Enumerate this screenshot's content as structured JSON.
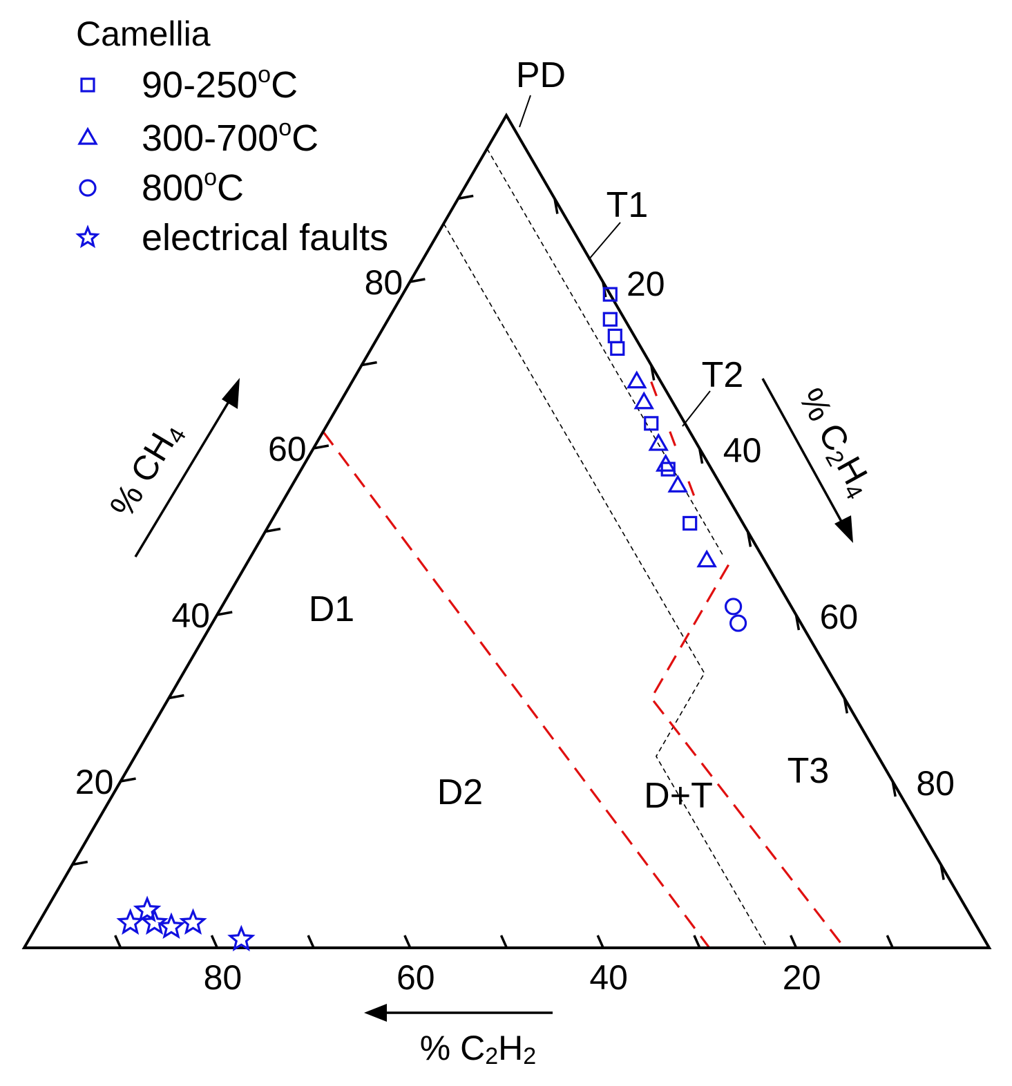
{
  "chart_data": {
    "type": "ternary-scatter",
    "legend": {
      "title": "Camellia",
      "placement": "top-left",
      "entries": [
        {
          "marker": "square-open",
          "label": "90-250",
          "unit_sup": "o",
          "unit": "C"
        },
        {
          "marker": "triangle-open",
          "label": "300-700",
          "unit_sup": "o",
          "unit": "C"
        },
        {
          "marker": "circle-open",
          "label": "800",
          "unit_sup": "o",
          "unit": "C"
        },
        {
          "marker": "star-open",
          "label": "electrical faults",
          "unit_sup": "",
          "unit": ""
        }
      ]
    },
    "axes": {
      "ch4": {
        "prefix": "% CH",
        "sub": "4",
        "ticks": [
          "20",
          "40",
          "60",
          "80"
        ]
      },
      "c2h4": {
        "prefix": "% C",
        "sub1": "2",
        "mid": "H",
        "sub2": "4",
        "ticks": [
          "20",
          "40",
          "60",
          "80"
        ]
      },
      "c2h2": {
        "prefix": "% C",
        "sub1": "2",
        "mid": "H",
        "sub2": "2",
        "ticks": [
          "20",
          "40",
          "60",
          "80"
        ]
      }
    },
    "zone_labels": {
      "PD": "PD",
      "T1": "T1",
      "T2": "T2",
      "T3": "T3",
      "D1": "D1",
      "D2": "D2",
      "DT": "D+T"
    },
    "series": [
      {
        "name": "90-250°C",
        "marker": "square",
        "points": [
          [
            78.5,
            21.5,
            0
          ],
          [
            75.5,
            23.0,
            1.5
          ],
          [
            73.5,
            24.5,
            2.0
          ],
          [
            72.0,
            25.5,
            2.5
          ],
          [
            63.0,
            33.5,
            3.5
          ],
          [
            57.5,
            38.0,
            4.5
          ],
          [
            51.0,
            43.5,
            5.5
          ]
        ]
      },
      {
        "name": "300-700°C",
        "marker": "triangle",
        "points": [
          [
            68.0,
            29.5,
            2.5
          ],
          [
            65.5,
            31.5,
            3.0
          ],
          [
            60.5,
            35.5,
            4.0
          ],
          [
            58.0,
            37.5,
            4.5
          ],
          [
            55.5,
            40.0,
            4.5
          ],
          [
            46.5,
            47.5,
            6.0
          ]
        ]
      },
      {
        "name": "800°C",
        "marker": "circle",
        "points": [
          [
            41.0,
            53.0,
            6.0
          ],
          [
            39.0,
            54.5,
            6.5
          ]
        ]
      },
      {
        "name": "electrical faults",
        "marker": "star",
        "points": [
          [
            3.0,
            9.5,
            87.5
          ],
          [
            4.5,
            10.5,
            85.0
          ],
          [
            3.0,
            12.0,
            85.0
          ],
          [
            2.5,
            14.0,
            83.5
          ],
          [
            3.0,
            16.0,
            81.0
          ],
          [
            1.0,
            22.0,
            77.0
          ]
        ]
      }
    ],
    "colors": {
      "markers": "#1010e0",
      "red_boundary": "#e01010",
      "black_boundary": "#000000"
    }
  }
}
